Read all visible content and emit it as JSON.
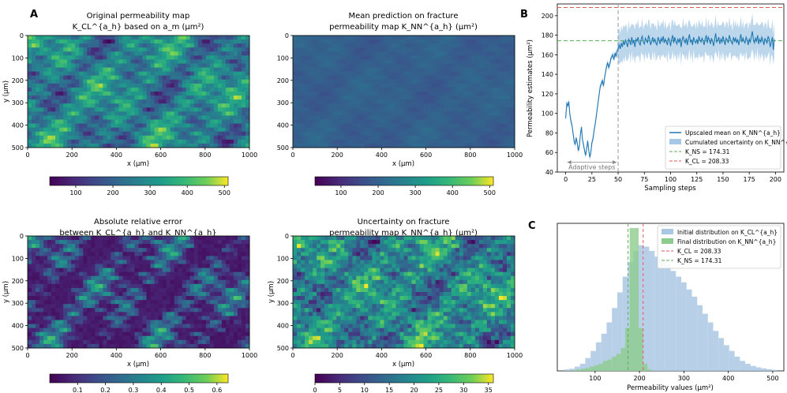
{
  "panel_letters": {
    "a": "A",
    "b": "B",
    "c": "C"
  },
  "colors": {
    "line": "#1f77b4",
    "band": "#a6c8e6",
    "green": "#5cae5c",
    "red": "#e05a5a",
    "vline": "#999999",
    "hist_initial": "#aac8e4",
    "hist_final": "#8ccc8c"
  },
  "maps": [
    {
      "title1": "Original permeability map",
      "title2": "K_CL^{a_h} based on a_m (μm²)",
      "xlabel": "x (μm)",
      "ylabel": "y (μm)",
      "xticks": [
        "0",
        "200",
        "400",
        "600",
        "800",
        "1000"
      ],
      "yticks": [
        "0",
        "100",
        "200",
        "300",
        "400",
        "500"
      ],
      "cbar_ticks": [
        "100",
        "200",
        "300",
        "400",
        "500"
      ],
      "cbar_range": [
        30,
        510
      ],
      "cbar_tick_values": [
        100,
        200,
        300,
        400,
        500
      ],
      "field": "original"
    },
    {
      "title1": "Mean prediction on fracture",
      "title2": "permeability map K_NN^{a_h} (μm²)",
      "xlabel": "x (μm)",
      "ylabel": "",
      "xticks": [
        "0",
        "200",
        "400",
        "600",
        "800",
        "1000"
      ],
      "yticks": [
        "0",
        "100",
        "200",
        "300",
        "400",
        "500"
      ],
      "cbar_ticks": [
        "100",
        "200",
        "300",
        "400",
        "500"
      ],
      "cbar_range": [
        30,
        510
      ],
      "cbar_tick_values": [
        100,
        200,
        300,
        400,
        500
      ],
      "field": "mean"
    },
    {
      "title1": "Absolute relative error",
      "title2": "between K_CL^{a_h} and K_NN^{a_h}",
      "xlabel": "x (μm)",
      "ylabel": "y (μm)",
      "xticks": [
        "0",
        "200",
        "400",
        "600",
        "800",
        "1000"
      ],
      "yticks": [
        "0",
        "100",
        "200",
        "300",
        "400",
        "500"
      ],
      "cbar_ticks": [
        "0.1",
        "0.2",
        "0.3",
        "0.4",
        "0.5",
        "0.6"
      ],
      "cbar_range": [
        0.0,
        0.64
      ],
      "cbar_tick_values": [
        0.1,
        0.2,
        0.3,
        0.4,
        0.5,
        0.6
      ],
      "field": "error"
    },
    {
      "title1": "Uncertainty on fracture",
      "title2": "permeability map K_NN^{a_h} (μm²)",
      "xlabel": "x (μm)",
      "ylabel": "y (μm)",
      "xticks": [
        "0",
        "200",
        "400",
        "600",
        "800",
        "1000"
      ],
      "yticks": [
        "0",
        "100",
        "200",
        "300",
        "400",
        "500"
      ],
      "cbar_ticks": [
        "0",
        "5",
        "10",
        "15",
        "20",
        "25",
        "30",
        "35"
      ],
      "cbar_range": [
        0,
        36
      ],
      "cbar_tick_values": [
        0,
        5,
        10,
        15,
        20,
        25,
        30,
        35
      ],
      "field": "uncert"
    }
  ],
  "chart_data": [
    {
      "type": "line",
      "panel": "B",
      "xlabel": "Sampling steps",
      "ylabel": "Permeability estimates (μm²)",
      "xlim": [
        -8,
        208
      ],
      "ylim": [
        40,
        212
      ],
      "xticks": [
        0,
        25,
        50,
        75,
        100,
        125,
        150,
        175,
        200
      ],
      "yticks": [
        40,
        60,
        80,
        100,
        120,
        140,
        160,
        180,
        200
      ],
      "x_start": 0,
      "mean_values": [
        95,
        110,
        108,
        112,
        99,
        92,
        88,
        80,
        72,
        68,
        75,
        70,
        62,
        66,
        78,
        86,
        73,
        68,
        62,
        57,
        64,
        72,
        62,
        55,
        60,
        70,
        74,
        82,
        88,
        96,
        104,
        112,
        120,
        128,
        130,
        134,
        128,
        136,
        142,
        148,
        152,
        147,
        150,
        156,
        158,
        160,
        155,
        162,
        158,
        164,
        166,
        170,
        166,
        172,
        168,
        174,
        170,
        175,
        172,
        168,
        176,
        174,
        170,
        178,
        172,
        175,
        168,
        176,
        174,
        178,
        172,
        170,
        176,
        179,
        173,
        171,
        177,
        175,
        172,
        180,
        176,
        170,
        174,
        178,
        173,
        176,
        172,
        170,
        178,
        175,
        171,
        177,
        174,
        179,
        172,
        176,
        173,
        170,
        177,
        175,
        169,
        176,
        180,
        172,
        178,
        174,
        171,
        176,
        173,
        177,
        168,
        175,
        179,
        174,
        172,
        177,
        170,
        176,
        181,
        173,
        175,
        170,
        178,
        174,
        172,
        176,
        171,
        179,
        175,
        173,
        177,
        174,
        170,
        176,
        180,
        172,
        178,
        175,
        171,
        177,
        174,
        169,
        176,
        182,
        173,
        175,
        178,
        171,
        176,
        173,
        179,
        174,
        170,
        177,
        175,
        172,
        180,
        176,
        173,
        171,
        178,
        174,
        177,
        172,
        176,
        170,
        175,
        181,
        173,
        177,
        174,
        172,
        178,
        175,
        170,
        176,
        173,
        179,
        184,
        175,
        172,
        177,
        174,
        180,
        171,
        176,
        173,
        178,
        175,
        170,
        177,
        174,
        172,
        179,
        176,
        168,
        173,
        178,
        165,
        176
      ],
      "uncertainty_halfwidth": 12,
      "adaptive_steps": {
        "start": 0,
        "end": 50,
        "label": "Adaptive steps"
      },
      "vline_x": 50,
      "hlines": [
        {
          "value": 174.31,
          "label": "K_NS = 174.31",
          "color": "#5cae5c"
        },
        {
          "value": 208.33,
          "label": "K_CL = 208.33",
          "color": "#e05a5a"
        }
      ],
      "legend": [
        {
          "label": "Upscaled mean on K_NN^{a_h}",
          "kind": "line"
        },
        {
          "label": "Cumulated uncertainty on K_NN^{a_h}",
          "kind": "patch"
        },
        {
          "label": "K_NS = 174.31",
          "kind": "dash-green"
        },
        {
          "label": "K_CL = 208.33",
          "kind": "dash-red"
        }
      ],
      "legend_position": "lower-right"
    },
    {
      "type": "bar",
      "panel": "C",
      "xlabel": "Permeability values (μm²)",
      "xlim": [
        15,
        525
      ],
      "xticks": [
        100,
        200,
        300,
        400,
        500
      ],
      "ylim": [
        0,
        1.0
      ],
      "initial": {
        "bin_start": 30,
        "bin_width": 12,
        "values": [
          0.01,
          0.015,
          0.03,
          0.05,
          0.09,
          0.14,
          0.2,
          0.26,
          0.34,
          0.44,
          0.55,
          0.66,
          0.76,
          0.84,
          0.88,
          0.87,
          0.84,
          0.8,
          0.77,
          0.74,
          0.7,
          0.66,
          0.62,
          0.57,
          0.52,
          0.46,
          0.4,
          0.34,
          0.28,
          0.23,
          0.18,
          0.14,
          0.1,
          0.07,
          0.05,
          0.035,
          0.025,
          0.018,
          0.012,
          0.008
        ]
      },
      "final": {
        "bin_start": 48,
        "bin_width": 10,
        "values": [
          0.005,
          0.01,
          0.015,
          0.02,
          0.03,
          0.04,
          0.05,
          0.07,
          0.08,
          0.1,
          0.12,
          0.16,
          0.3,
          1.0,
          1.0,
          0.3,
          0.05,
          0.01
        ]
      },
      "vlines": [
        {
          "value": 208.33,
          "label": "K_CL = 208.33",
          "color": "#e05a5a"
        },
        {
          "value": 174.31,
          "label": "K_NS = 174.31",
          "color": "#5cae5c"
        }
      ],
      "legend": [
        {
          "label": "Initial distribution on K_CL^{a_h}",
          "kind": "patch-blue"
        },
        {
          "label": "Final distribution on K_NN^{a_h}",
          "kind": "patch-green"
        },
        {
          "label": "K_CL = 208.33",
          "kind": "dash-red"
        },
        {
          "label": "K_NS = 174.31",
          "kind": "dash-green"
        }
      ],
      "legend_position": "top-right"
    }
  ]
}
